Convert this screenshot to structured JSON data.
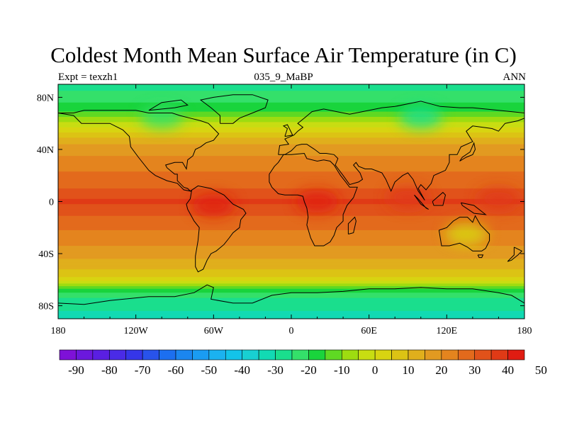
{
  "title": "Coldest Month Mean Surface Air Temperature (in C)",
  "subtitle": {
    "left": "Expt = texzh1",
    "center": "035_9_MaBP",
    "right": "ANN"
  },
  "chart_data": {
    "type": "heatmap",
    "title": "Coldest Month Mean Surface Air Temperature (in C)",
    "projection": "cylindrical equidistant world map with coastline overlay",
    "x_axis": {
      "range": [
        -180,
        180
      ],
      "ticks": [
        -180,
        -120,
        -60,
        0,
        60,
        120,
        180
      ],
      "tick_labels": [
        "180",
        "120W",
        "60W",
        "0",
        "60E",
        "120E",
        "180"
      ]
    },
    "y_axis": {
      "range": [
        -90,
        90
      ],
      "ticks": [
        80,
        40,
        0,
        -40,
        -80
      ],
      "tick_labels": [
        "80N",
        "40N",
        "0",
        "40S",
        "80S"
      ]
    },
    "colorbar": {
      "min": -95,
      "step": 5,
      "labels": [
        "-90",
        "-80",
        "-70",
        "-60",
        "-50",
        "-40",
        "-30",
        "-20",
        "-10",
        "0",
        "10",
        "20",
        "30",
        "40",
        "50"
      ],
      "colors": [
        "#7e11d8",
        "#6b18dd",
        "#5a1fe2",
        "#4a2be6",
        "#3536e8",
        "#2853eb",
        "#1c6ff0",
        "#1b86f0",
        "#1a9cf2",
        "#1bb2f0",
        "#13c3e9",
        "#18d0d2",
        "#12dab3",
        "#1ade8d",
        "#34e06a",
        "#19d43c",
        "#5fd923",
        "#9edc10",
        "#c8dd12",
        "#d8d411",
        "#dcc314",
        "#e0af1c",
        "#e29a21",
        "#e4841e",
        "#e36a1c",
        "#e1521a",
        "#e03a16",
        "#e01c12"
      ]
    },
    "latitude_profile": [
      {
        "lat": 88,
        "value": -27
      },
      {
        "lat": 80,
        "value": -22
      },
      {
        "lat": 72,
        "value": -18
      },
      {
        "lat": 66,
        "value": -12
      },
      {
        "lat": 62,
        "value": -6
      },
      {
        "lat": 57,
        "value": 0
      },
      {
        "lat": 52,
        "value": 7
      },
      {
        "lat": 45,
        "value": 14
      },
      {
        "lat": 38,
        "value": 19
      },
      {
        "lat": 30,
        "value": 22
      },
      {
        "lat": 20,
        "value": 26
      },
      {
        "lat": 10,
        "value": 30
      },
      {
        "lat": 5,
        "value": 33
      },
      {
        "lat": 0,
        "value": 36
      },
      {
        "lat": -6,
        "value": 33
      },
      {
        "lat": -12,
        "value": 29
      },
      {
        "lat": -22,
        "value": 25
      },
      {
        "lat": -32,
        "value": 21
      },
      {
        "lat": -40,
        "value": 17
      },
      {
        "lat": -48,
        "value": 13
      },
      {
        "lat": -55,
        "value": 8
      },
      {
        "lat": -60,
        "value": 2
      },
      {
        "lat": -63,
        "value": -6
      },
      {
        "lat": -67,
        "value": -16
      },
      {
        "lat": -72,
        "value": -24
      },
      {
        "lat": -80,
        "value": -29
      },
      {
        "lat": -88,
        "value": -31
      }
    ],
    "hotspots": [
      {
        "region": "Amazon basin",
        "lon": -60,
        "lat": -3,
        "value": 42
      },
      {
        "region": "Central Africa",
        "lon": 20,
        "lat": 0,
        "value": 40
      },
      {
        "region": "Tropical Indian Ocean / Maritime Continent",
        "lon": 90,
        "lat": 3,
        "value": 38
      },
      {
        "region": "Tropical Pacific",
        "lon": 160,
        "lat": 2,
        "value": 37
      },
      {
        "region": "Australia interior",
        "lon": 135,
        "lat": -25,
        "value": 3
      },
      {
        "region": "Siberia",
        "lon": 100,
        "lat": 65,
        "value": -28
      },
      {
        "region": "Northern Canada",
        "lon": -100,
        "lat": 65,
        "value": -25
      }
    ]
  }
}
